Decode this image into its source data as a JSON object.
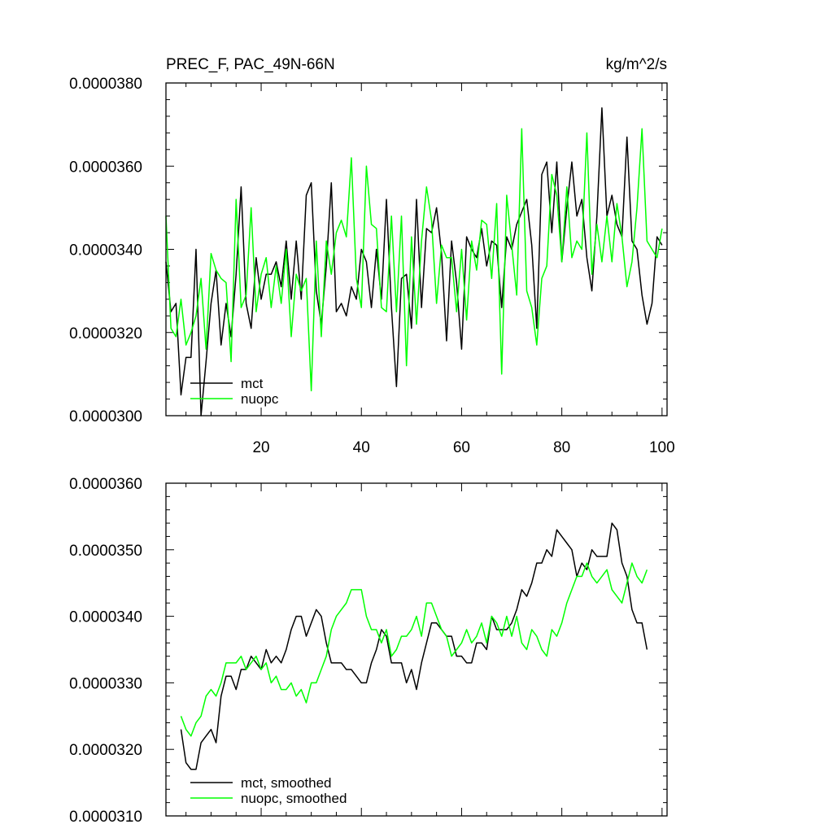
{
  "chart_data": [
    {
      "type": "line",
      "title_left": "PREC_F, PAC_49N-66N",
      "title_right": "kg/m^2/s",
      "xlabel": "",
      "ylabel": "",
      "xlim": [
        1,
        101
      ],
      "ylim": [
        3e-05,
        3.8e-05
      ],
      "x_ticks": [
        20,
        40,
        60,
        80,
        100
      ],
      "x_tick_labels": [
        "20",
        "40",
        "60",
        "80",
        "100"
      ],
      "y_ticks": [
        3e-05,
        3.2e-05,
        3.4e-05,
        3.6e-05,
        3.8e-05
      ],
      "y_tick_labels": [
        "0.0000300",
        "0.0000320",
        "0.0000340",
        "0.0000360",
        "0.0000380"
      ],
      "legend_position": "bottom-left",
      "x_start": 1,
      "series": [
        {
          "name": "mct",
          "color": "#000000",
          "values": [
            33.7,
            32.5,
            32.7,
            30.5,
            31.4,
            31.4,
            34.0,
            30.0,
            31.3,
            32.7,
            33.5,
            31.7,
            32.7,
            31.9,
            33.4,
            35.5,
            32.7,
            32.1,
            33.8,
            32.8,
            33.4,
            33.4,
            33.7,
            33.1,
            34.2,
            32.8,
            34.2,
            32.8,
            35.3,
            35.6,
            33.0,
            32.2,
            33.6,
            35.6,
            32.5,
            32.7,
            32.4,
            33.1,
            32.8,
            34.0,
            33.7,
            32.6,
            34.0,
            32.8,
            35.2,
            32.6,
            30.7,
            33.3,
            33.4,
            32.1,
            35.2,
            32.6,
            34.5,
            34.4,
            35.0,
            33.9,
            31.8,
            34.2,
            33.2,
            31.6,
            34.3,
            34.0,
            33.8,
            34.5,
            33.6,
            34.2,
            34.1,
            32.6,
            34.3,
            34.0,
            34.6,
            34.9,
            35.2,
            34.1,
            32.1,
            35.8,
            36.1,
            34.4,
            36.1,
            33.7,
            35.0,
            36.1,
            34.8,
            35.2,
            33.8,
            33.0,
            34.8,
            37.4,
            34.8,
            35.3,
            34.6,
            34.3,
            36.7,
            34.2,
            34.0,
            32.9,
            32.2,
            32.7,
            34.3,
            34.1
          ]
        },
        {
          "name": "nuopc",
          "color": "#00ff00",
          "values": [
            34.8,
            32.1,
            31.9,
            32.8,
            31.7,
            32.0,
            32.4,
            33.3,
            31.6,
            33.9,
            33.5,
            33.3,
            33.2,
            31.3,
            35.2,
            32.6,
            32.9,
            35.0,
            32.5,
            33.4,
            33.8,
            32.6,
            33.6,
            32.7,
            34.0,
            31.9,
            33.4,
            33.0,
            33.3,
            30.6,
            34.2,
            31.9,
            34.2,
            33.4,
            34.4,
            34.7,
            34.3,
            36.2,
            33.3,
            32.6,
            36.0,
            34.6,
            34.5,
            32.6,
            32.5,
            34.8,
            32.5,
            34.8,
            31.2,
            34.3,
            32.2,
            34.2,
            35.5,
            34.7,
            32.7,
            34.1,
            33.8,
            33.8,
            32.5,
            34.0,
            32.3,
            34.2,
            33.5,
            34.7,
            34.6,
            33.3,
            35.1,
            31.0,
            35.3,
            34.1,
            32.9,
            36.9,
            33.0,
            32.6,
            31.7,
            33.3,
            33.6,
            35.8,
            35.3,
            33.7,
            35.5,
            33.8,
            34.2,
            34.0,
            36.8,
            33.4,
            34.6,
            33.7,
            34.8,
            33.7,
            35.1,
            34.3,
            33.1,
            33.7,
            35.0,
            36.9,
            34.2,
            34.0,
            33.8,
            34.5
          ]
        }
      ]
    },
    {
      "type": "line",
      "xlim": [
        1,
        101
      ],
      "ylim": [
        3.1e-05,
        3.6e-05
      ],
      "x_ticks": [
        20,
        40,
        60,
        80,
        100
      ],
      "y_ticks": [
        3.1e-05,
        3.2e-05,
        3.3e-05,
        3.4e-05,
        3.5e-05,
        3.6e-05
      ],
      "y_tick_labels": [
        "0.0000310",
        "0.0000320",
        "0.0000330",
        "0.0000340",
        "0.0000350",
        "0.0000360"
      ],
      "legend_position": "bottom-left",
      "x_start": 4,
      "series": [
        {
          "name": "mct, smoothed",
          "color": "#000000",
          "values": [
            32.3,
            31.8,
            31.7,
            31.7,
            32.1,
            32.2,
            32.3,
            32.1,
            32.8,
            33.1,
            33.1,
            32.9,
            33.2,
            33.2,
            33.4,
            33.3,
            33.2,
            33.5,
            33.3,
            33.4,
            33.3,
            33.5,
            33.8,
            34.0,
            34.0,
            33.7,
            33.9,
            34.1,
            34.0,
            33.6,
            33.3,
            33.3,
            33.3,
            33.2,
            33.2,
            33.1,
            33.0,
            33.0,
            33.3,
            33.5,
            33.8,
            33.7,
            33.3,
            33.3,
            33.3,
            33.0,
            33.2,
            32.9,
            33.3,
            33.6,
            33.9,
            33.9,
            33.8,
            33.7,
            33.7,
            33.4,
            33.4,
            33.3,
            33.3,
            33.6,
            33.6,
            33.5,
            34.0,
            33.8,
            33.8,
            33.8,
            33.9,
            34.1,
            34.4,
            34.3,
            34.5,
            34.8,
            34.8,
            35.0,
            34.9,
            35.3,
            35.2,
            35.1,
            35.0,
            34.6,
            34.8,
            34.7,
            35.0,
            34.9,
            34.9,
            34.9,
            35.4,
            35.3,
            34.8,
            34.6,
            34.1,
            33.9,
            33.9,
            33.5
          ]
        },
        {
          "name": "nuopc, smoothed",
          "color": "#00ff00",
          "values": [
            32.5,
            32.3,
            32.2,
            32.4,
            32.5,
            32.8,
            32.9,
            32.8,
            33.0,
            33.3,
            33.3,
            33.3,
            33.4,
            33.2,
            33.3,
            33.4,
            33.2,
            33.3,
            33.0,
            33.1,
            32.9,
            32.9,
            33.0,
            32.8,
            32.9,
            32.7,
            33.0,
            33.0,
            33.2,
            33.4,
            33.8,
            34.0,
            34.1,
            34.2,
            34.4,
            34.4,
            34.4,
            34.0,
            33.8,
            33.8,
            33.6,
            33.8,
            33.4,
            33.5,
            33.7,
            33.7,
            33.8,
            34.0,
            33.7,
            34.2,
            34.2,
            34.0,
            33.8,
            33.7,
            33.4,
            33.5,
            33.6,
            33.8,
            33.6,
            33.7,
            33.9,
            33.6,
            34.0,
            33.9,
            33.7,
            34.0,
            33.7,
            34.0,
            33.6,
            33.5,
            33.8,
            33.7,
            33.5,
            33.4,
            33.8,
            33.7,
            33.9,
            34.2,
            34.4,
            34.6,
            34.6,
            34.8,
            34.6,
            34.5,
            34.6,
            34.7,
            34.4,
            34.3,
            34.2,
            34.5,
            34.8,
            34.6,
            34.5,
            34.7
          ]
        }
      ]
    }
  ]
}
